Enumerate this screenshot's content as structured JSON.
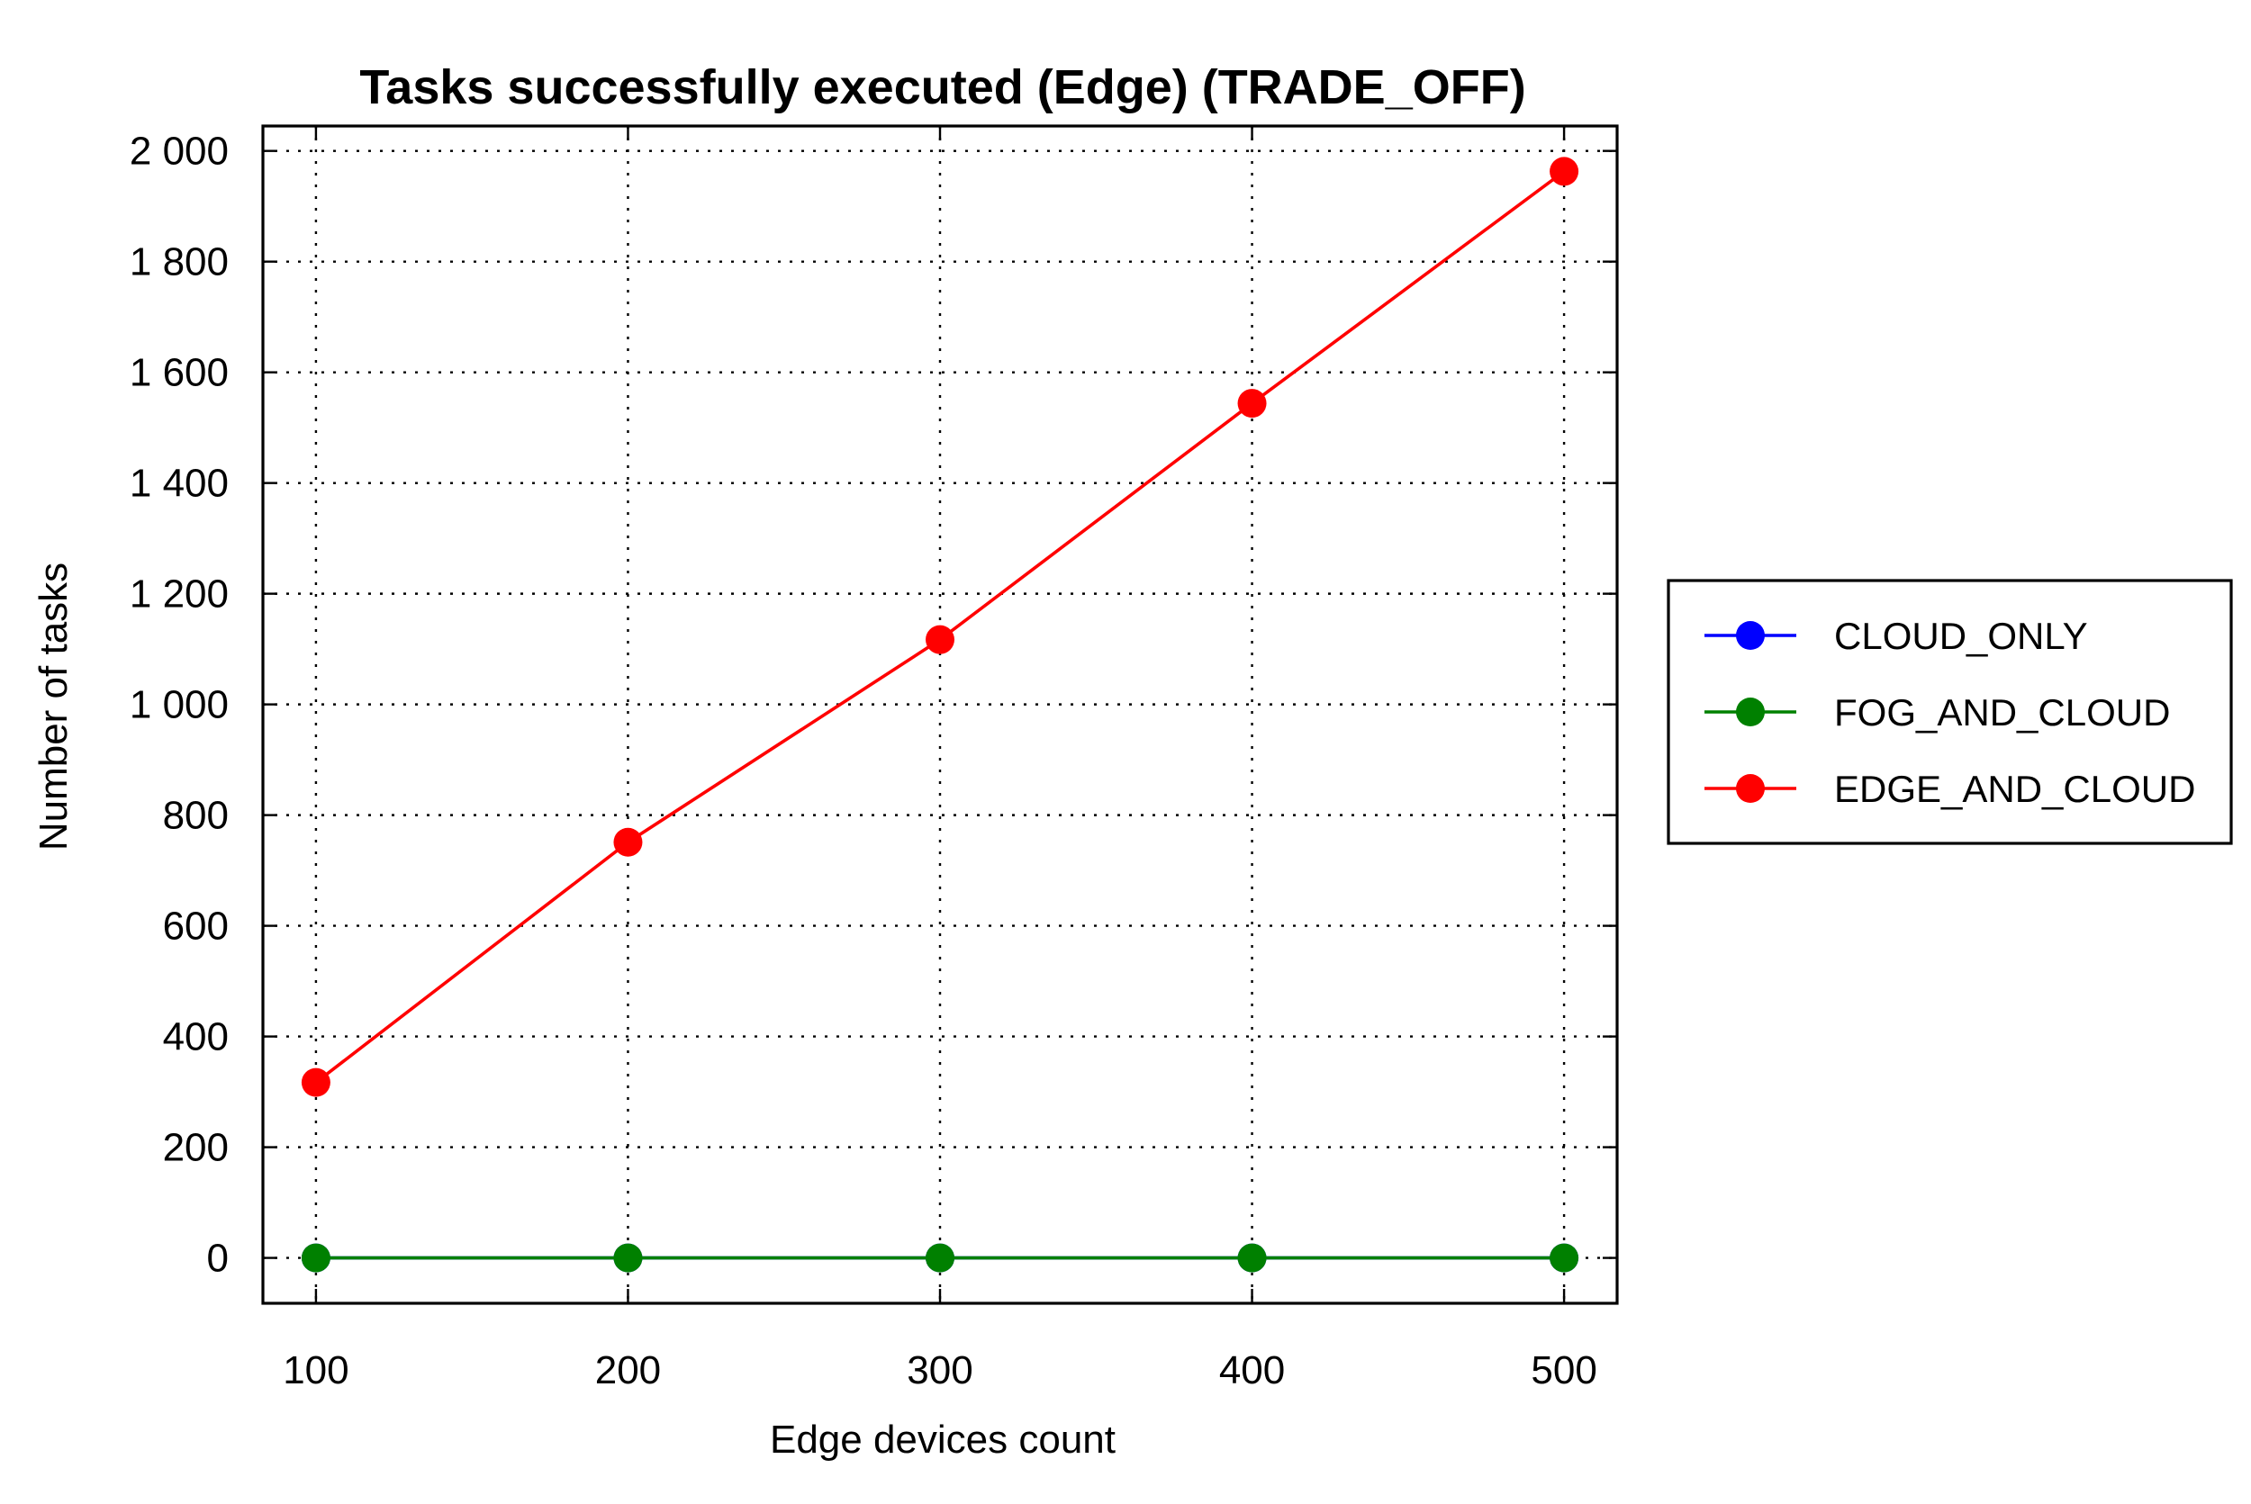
{
  "chart_data": {
    "type": "line",
    "title": "Tasks successfully executed (Edge) (TRADE_OFF)",
    "xlabel": "Edge devices count",
    "ylabel": "Number of tasks",
    "x": [
      100,
      200,
      300,
      400,
      500
    ],
    "x_tick_labels": [
      "100",
      "200",
      "300",
      "400",
      "500"
    ],
    "xlim": [
      83,
      517
    ],
    "ylim": [
      -82,
      2045
    ],
    "y_ticks": [
      0,
      200,
      400,
      600,
      800,
      1000,
      1200,
      1400,
      1600,
      1800,
      2000
    ],
    "y_tick_labels": [
      "0",
      "200",
      "400",
      "600",
      "800",
      "1 000",
      "1 200",
      "1 400",
      "1 600",
      "1 800",
      "2 000"
    ],
    "grid": true,
    "legend_position": "right",
    "series": [
      {
        "name": "CLOUD_ONLY",
        "color": "#0000ff",
        "values": [
          0,
          0,
          0,
          0,
          0
        ]
      },
      {
        "name": "FOG_AND_CLOUD",
        "color": "#008000",
        "values": [
          0,
          0,
          0,
          0,
          0
        ]
      },
      {
        "name": "EDGE_AND_CLOUD",
        "color": "#ff0000",
        "values": [
          317,
          751,
          1117,
          1544,
          1963
        ]
      }
    ]
  }
}
